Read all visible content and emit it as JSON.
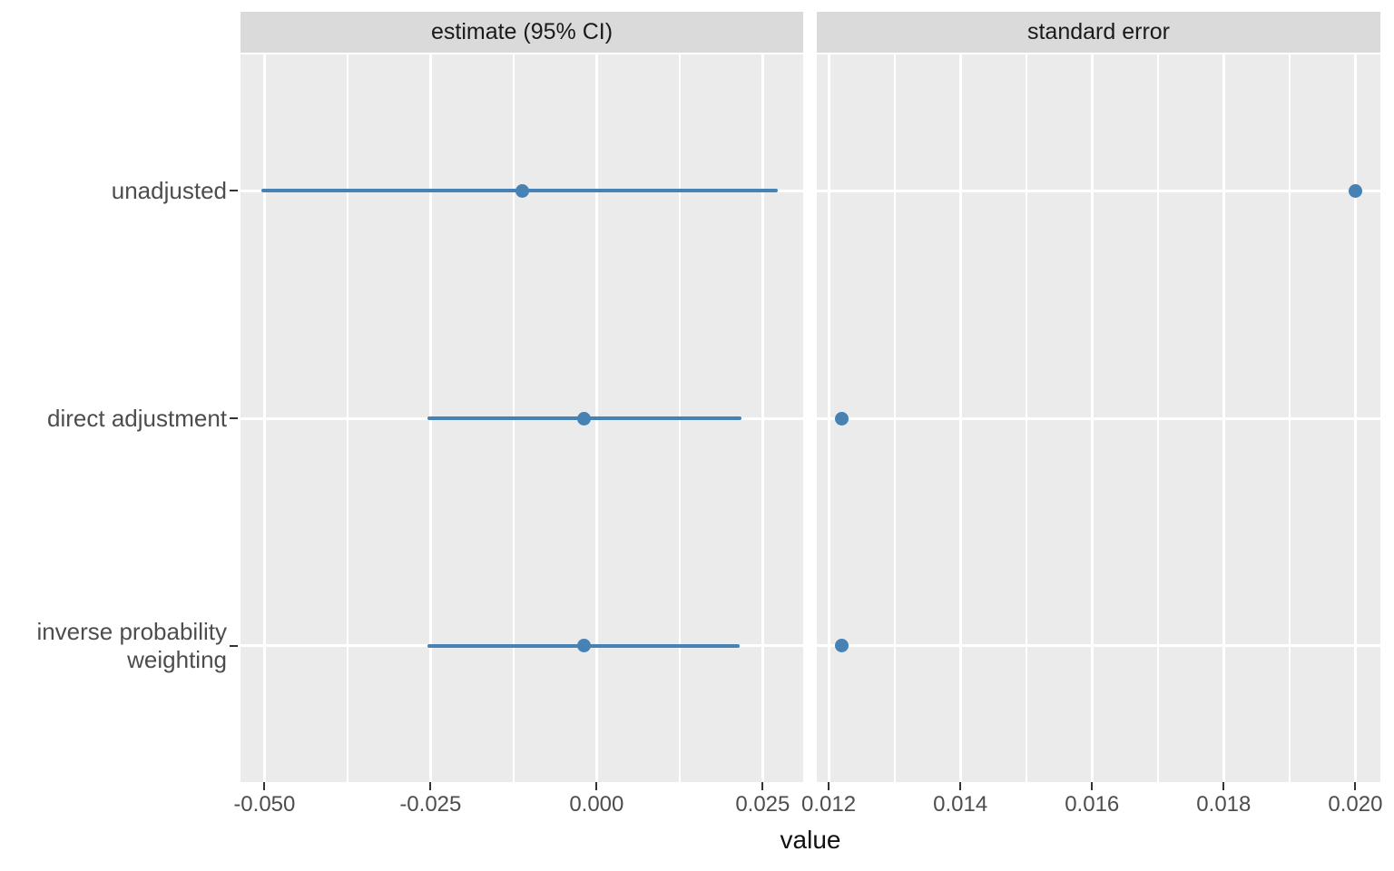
{
  "chart_data": {
    "type": "scatter",
    "chart_style": "faceted horizontal dot plot with 95% CI error bars (ggplot2 theme_grey)",
    "xlabel": "value",
    "categories": [
      "unadjusted",
      "direct adjustment",
      "inverse probability weighting"
    ],
    "facets": [
      {
        "label": "estimate (95% CI)",
        "xlim": [
          -0.0536,
          0.0311
        ],
        "tick_values": [
          -0.05,
          -0.025,
          0.0,
          0.025
        ],
        "tick_labels": [
          "-0.050",
          "-0.025",
          "0.000",
          "0.025"
        ],
        "minor_tick_values": [
          -0.0375,
          -0.0125,
          0.0125
        ],
        "series": [
          {
            "category": "unadjusted",
            "estimate": -0.0112,
            "ci_low": -0.0504,
            "ci_high": 0.0273
          },
          {
            "category": "direct adjustment",
            "estimate": -0.0019,
            "ci_low": -0.0254,
            "ci_high": 0.0218
          },
          {
            "category": "inverse probability weighting",
            "estimate": -0.0019,
            "ci_low": -0.0254,
            "ci_high": 0.0215
          }
        ]
      },
      {
        "label": "standard error",
        "xlim": [
          0.01182,
          0.02038
        ],
        "tick_values": [
          0.012,
          0.014,
          0.016,
          0.018,
          0.02
        ],
        "tick_labels": [
          "0.012",
          "0.014",
          "0.016",
          "0.018",
          "0.020"
        ],
        "minor_tick_values": [
          0.013,
          0.015,
          0.017,
          0.019
        ],
        "series": [
          {
            "category": "unadjusted",
            "estimate": 0.02,
            "ci_low": null,
            "ci_high": null
          },
          {
            "category": "direct adjustment",
            "estimate": 0.0122,
            "ci_low": null,
            "ci_high": null
          },
          {
            "category": "inverse probability weighting",
            "estimate": 0.0122,
            "ci_low": null,
            "ci_high": null
          }
        ]
      }
    ],
    "legend": "none",
    "grid": "on",
    "colors": {
      "point": "#4682B4",
      "ci_line": "#4682B4",
      "panel_background": "#EBEBEB",
      "strip_background": "#DADADA",
      "gridline": "#FFFFFF",
      "axis_text": "#4D4D4D",
      "strip_text": "#1A1A1A",
      "axis_title": "#111111"
    }
  }
}
